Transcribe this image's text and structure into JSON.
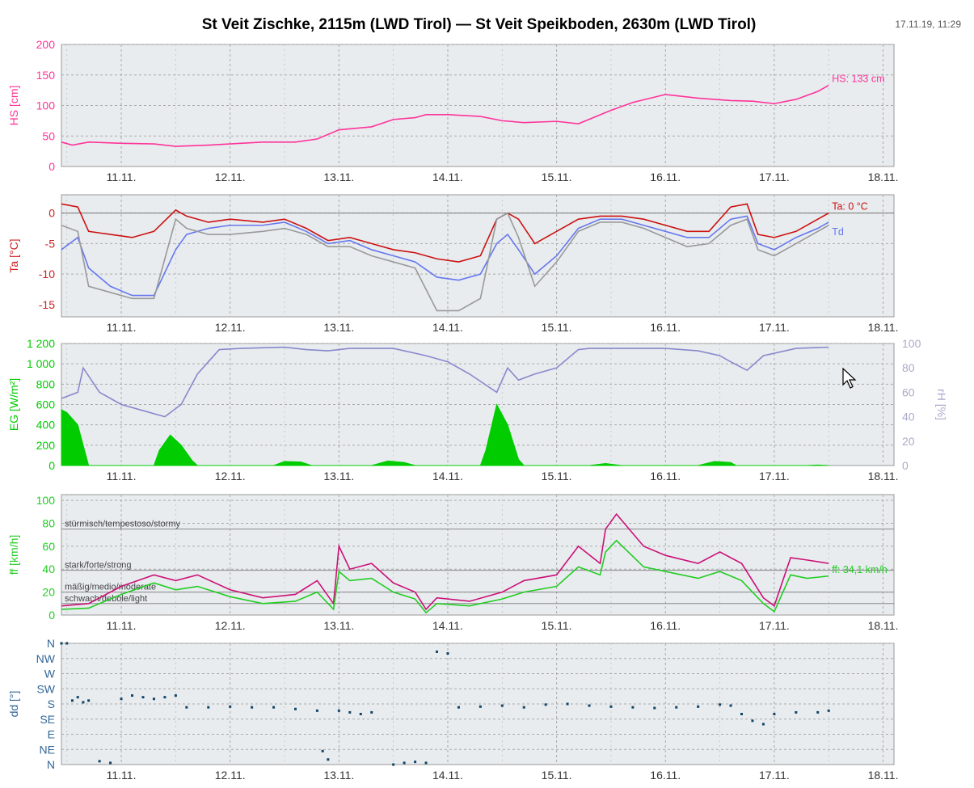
{
  "header": {
    "title": "St Veit Zischke, 2115m (LWD Tirol) — St Veit Speikboden, 2630m (LWD Tirol)",
    "timestamp": "17.11.19, 11:29"
  },
  "chart_data": [
    {
      "type": "line",
      "id": "hs",
      "ylabel": "HS [cm]",
      "ylim": [
        0,
        200
      ],
      "yticks": [
        "0",
        "50",
        "100",
        "150",
        "200"
      ],
      "x_ticks": [
        "11.11.",
        "12.11.",
        "13.11.",
        "14.11.",
        "15.11.",
        "16.11.",
        "17.11.",
        "18.11."
      ],
      "x_range_days": [
        10.45,
        18.1
      ],
      "series": [
        {
          "name": "HS",
          "color": "#ff3399",
          "label": "HS: 133 cm",
          "x": [
            10.45,
            10.55,
            10.7,
            11.0,
            11.3,
            11.5,
            11.8,
            12.0,
            12.3,
            12.6,
            12.8,
            13.0,
            13.3,
            13.5,
            13.7,
            13.8,
            14.0,
            14.3,
            14.5,
            14.7,
            15.0,
            15.2,
            15.5,
            15.7,
            16.0,
            16.3,
            16.6,
            16.8,
            17.0,
            17.2,
            17.4,
            17.5
          ],
          "values": [
            40,
            35,
            40,
            38,
            37,
            33,
            35,
            37,
            40,
            40,
            45,
            60,
            65,
            77,
            80,
            85,
            85,
            82,
            75,
            72,
            74,
            70,
            92,
            105,
            118,
            112,
            108,
            107,
            103,
            110,
            123,
            133
          ]
        }
      ],
      "grid": true
    },
    {
      "type": "line",
      "id": "ta",
      "ylabel": "Ta [°C]",
      "ylim": [
        -17,
        3
      ],
      "yticks": [
        "-15",
        "-10",
        "-5",
        "0"
      ],
      "x_ticks": [
        "11.11.",
        "12.11.",
        "13.11.",
        "14.11.",
        "15.11.",
        "16.11.",
        "17.11.",
        "18.11."
      ],
      "x_range_days": [
        10.45,
        18.1
      ],
      "series": [
        {
          "name": "Ta",
          "color": "#cc1111",
          "label": "Ta: 0 °C",
          "x": [
            10.45,
            10.6,
            10.7,
            10.9,
            11.1,
            11.3,
            11.5,
            11.6,
            11.8,
            12.0,
            12.3,
            12.5,
            12.7,
            12.9,
            13.1,
            13.3,
            13.5,
            13.7,
            13.9,
            14.1,
            14.3,
            14.45,
            14.55,
            14.65,
            14.8,
            15.0,
            15.2,
            15.4,
            15.6,
            15.8,
            16.0,
            16.2,
            16.4,
            16.6,
            16.75,
            16.85,
            17.0,
            17.2,
            17.4,
            17.5
          ],
          "values": [
            1.5,
            1.0,
            -3.0,
            -3.5,
            -4.0,
            -3.0,
            0.5,
            -0.5,
            -1.5,
            -1.0,
            -1.5,
            -1.0,
            -2.5,
            -4.5,
            -4.0,
            -5.0,
            -6.0,
            -6.5,
            -7.5,
            -8.0,
            -7.0,
            -1.0,
            0.0,
            -1.0,
            -5.0,
            -3.0,
            -1.0,
            -0.5,
            -0.5,
            -1.0,
            -2.0,
            -3.0,
            -3.0,
            1.0,
            1.5,
            -3.5,
            -4.0,
            -3.0,
            -1.0,
            0.0
          ]
        },
        {
          "name": "Td",
          "color": "#6677ee",
          "label": "Td",
          "x": [
            10.45,
            10.6,
            10.7,
            10.9,
            11.1,
            11.3,
            11.5,
            11.6,
            11.8,
            12.0,
            12.3,
            12.5,
            12.7,
            12.9,
            13.1,
            13.3,
            13.5,
            13.7,
            13.9,
            14.1,
            14.3,
            14.45,
            14.55,
            14.65,
            14.8,
            15.0,
            15.2,
            15.4,
            15.6,
            15.8,
            16.0,
            16.2,
            16.4,
            16.6,
            16.75,
            16.85,
            17.0,
            17.2,
            17.4,
            17.5
          ],
          "values": [
            -6.0,
            -4.0,
            -9.0,
            -12.0,
            -13.5,
            -13.5,
            -6.0,
            -3.5,
            -2.5,
            -2.0,
            -2.0,
            -1.5,
            -3.0,
            -5.0,
            -4.5,
            -6.0,
            -7.0,
            -8.0,
            -10.5,
            -11.0,
            -10.0,
            -5.0,
            -3.5,
            -6.0,
            -10.0,
            -7.0,
            -2.5,
            -1.0,
            -1.0,
            -2.0,
            -3.0,
            -4.0,
            -4.0,
            -1.0,
            -0.5,
            -5.0,
            -6.0,
            -4.0,
            -2.5,
            -1.5
          ]
        },
        {
          "name": "",
          "color": "#999999",
          "label": "",
          "x": [
            10.45,
            10.6,
            10.7,
            10.9,
            11.1,
            11.3,
            11.5,
            11.6,
            11.8,
            12.0,
            12.3,
            12.5,
            12.7,
            12.9,
            13.1,
            13.3,
            13.5,
            13.7,
            13.9,
            14.1,
            14.3,
            14.45,
            14.55,
            14.65,
            14.8,
            15.0,
            15.2,
            15.4,
            15.6,
            15.8,
            16.0,
            16.2,
            16.4,
            16.6,
            16.75,
            16.85,
            17.0,
            17.2,
            17.4,
            17.5
          ],
          "values": [
            -2.0,
            -3.0,
            -12.0,
            -13.0,
            -14.0,
            -14.0,
            -1.0,
            -2.5,
            -3.5,
            -3.5,
            -3.0,
            -2.5,
            -3.5,
            -5.5,
            -5.5,
            -7.0,
            -8.0,
            -9.0,
            -16.0,
            -16.0,
            -14.0,
            -1.0,
            0.0,
            -4.0,
            -12.0,
            -8.0,
            -3.0,
            -1.5,
            -1.5,
            -2.5,
            -4.0,
            -5.5,
            -5.0,
            -2.0,
            -1.0,
            -6.0,
            -7.0,
            -5.0,
            -3.0,
            -2.0
          ]
        }
      ],
      "grid": true
    },
    {
      "type": "area",
      "id": "eg",
      "ylabel": "EG [W/m²]",
      "ylim": [
        0,
        1200
      ],
      "yticks": [
        "0",
        "200",
        "400",
        "600",
        "800",
        "1 000",
        "1 200"
      ],
      "y2label": "rH [%]",
      "y2lim": [
        0,
        100
      ],
      "y2ticks": [
        "0",
        "20",
        "40",
        "60",
        "80",
        "100"
      ],
      "x_ticks": [
        "11.11.",
        "12.11.",
        "13.11.",
        "14.11.",
        "15.11.",
        "16.11.",
        "17.11.",
        "18.11."
      ],
      "x_range_days": [
        10.45,
        18.1
      ],
      "series": [
        {
          "name": "EG",
          "color": "#00cc00",
          "axis": "left",
          "x": [
            10.45,
            10.5,
            10.6,
            10.65,
            10.7,
            11.3,
            11.35,
            11.45,
            11.55,
            11.65,
            11.7,
            12.4,
            12.5,
            12.65,
            12.75,
            13.3,
            13.45,
            13.6,
            13.7,
            14.3,
            14.35,
            14.45,
            14.55,
            14.65,
            14.7,
            15.3,
            15.45,
            15.6,
            16.3,
            16.45,
            16.6,
            16.65,
            17.3,
            17.4,
            17.5
          ],
          "values": [
            550,
            520,
            400,
            200,
            0,
            0,
            150,
            300,
            200,
            50,
            0,
            0,
            40,
            35,
            0,
            0,
            45,
            30,
            0,
            0,
            150,
            600,
            400,
            60,
            0,
            0,
            20,
            0,
            0,
            40,
            30,
            0,
            0,
            5,
            0
          ]
        },
        {
          "name": "rH",
          "color": "#8888cc",
          "axis": "right",
          "x": [
            10.45,
            10.6,
            10.65,
            10.8,
            11.0,
            11.2,
            11.4,
            11.55,
            11.7,
            11.9,
            12.1,
            12.5,
            12.7,
            12.9,
            13.1,
            13.5,
            13.8,
            14.0,
            14.2,
            14.45,
            14.55,
            14.65,
            14.8,
            15.0,
            15.2,
            15.3,
            15.5,
            15.8,
            16.0,
            16.3,
            16.5,
            16.6,
            16.75,
            16.9,
            17.2,
            17.5
          ],
          "values": [
            55,
            60,
            80,
            60,
            50,
            45,
            40,
            50,
            75,
            95,
            96,
            97,
            95,
            94,
            96,
            96,
            90,
            85,
            75,
            60,
            80,
            70,
            75,
            80,
            95,
            96,
            96,
            96,
            96,
            94,
            90,
            85,
            78,
            90,
            96,
            97
          ]
        }
      ],
      "grid": true
    },
    {
      "type": "line",
      "id": "ff",
      "ylabel": "ff [km/h]",
      "ylim": [
        0,
        105
      ],
      "yticks": [
        "0",
        "20",
        "40",
        "60",
        "80",
        "100"
      ],
      "x_ticks": [
        "11.11.",
        "12.11.",
        "13.11.",
        "14.11.",
        "15.11.",
        "16.11.",
        "17.11.",
        "18.11."
      ],
      "x_range_days": [
        10.45,
        18.1
      ],
      "thresholds": [
        {
          "label": "stürmisch/tempestoso/stormy",
          "value": 75
        },
        {
          "label": "stark/forte/strong",
          "value": 39
        },
        {
          "label": "mäßig/medio/moderate",
          "value": 20
        },
        {
          "label": "schwach/debole/light",
          "value": 10
        }
      ],
      "series": [
        {
          "name": "gust",
          "color": "#cc1177",
          "label": "",
          "x": [
            10.45,
            10.7,
            11.0,
            11.3,
            11.5,
            11.7,
            12.0,
            12.3,
            12.6,
            12.8,
            12.95,
            13.0,
            13.1,
            13.3,
            13.5,
            13.7,
            13.8,
            13.9,
            14.2,
            14.5,
            14.7,
            15.0,
            15.2,
            15.4,
            15.45,
            15.55,
            15.8,
            16.0,
            16.3,
            16.5,
            16.7,
            16.9,
            17.0,
            17.15,
            17.3,
            17.5
          ],
          "values": [
            8,
            10,
            25,
            35,
            30,
            35,
            22,
            15,
            18,
            30,
            10,
            60,
            40,
            45,
            28,
            20,
            5,
            15,
            12,
            20,
            30,
            35,
            60,
            45,
            75,
            88,
            60,
            52,
            45,
            55,
            45,
            15,
            8,
            50,
            48,
            45
          ]
        },
        {
          "name": "ff",
          "color": "#22cc22",
          "label": "ff: 34,1 km/h",
          "x": [
            10.45,
            10.7,
            11.0,
            11.3,
            11.5,
            11.7,
            12.0,
            12.3,
            12.6,
            12.8,
            12.95,
            13.0,
            13.1,
            13.3,
            13.5,
            13.7,
            13.8,
            13.9,
            14.2,
            14.5,
            14.7,
            15.0,
            15.2,
            15.4,
            15.45,
            15.55,
            15.8,
            16.0,
            16.3,
            16.5,
            16.7,
            16.9,
            17.0,
            17.15,
            17.3,
            17.5
          ],
          "values": [
            5,
            6,
            18,
            28,
            22,
            25,
            16,
            10,
            12,
            20,
            5,
            38,
            30,
            32,
            20,
            14,
            2,
            10,
            8,
            14,
            20,
            25,
            42,
            35,
            55,
            65,
            42,
            38,
            32,
            38,
            30,
            10,
            3,
            35,
            32,
            34
          ]
        }
      ],
      "grid": true
    },
    {
      "type": "scatter",
      "id": "dd",
      "ylabel": "dd [°]",
      "ylim": [
        0,
        360
      ],
      "yticks": [
        "N",
        "NE",
        "E",
        "SE",
        "S",
        "SW",
        "W",
        "NW",
        "N"
      ],
      "x_ticks": [
        "11.11.",
        "12.11.",
        "13.11.",
        "14.11.",
        "15.11.",
        "16.11.",
        "17.11.",
        "18.11."
      ],
      "x_range_days": [
        10.45,
        18.1
      ],
      "series": [
        {
          "name": "dd",
          "color": "#114466",
          "x": [
            10.45,
            10.5,
            10.55,
            10.6,
            10.65,
            10.7,
            10.8,
            10.9,
            11.0,
            11.1,
            11.2,
            11.3,
            11.4,
            11.5,
            11.6,
            11.8,
            12.0,
            12.2,
            12.4,
            12.6,
            12.8,
            12.85,
            12.9,
            13.0,
            13.1,
            13.2,
            13.3,
            13.5,
            13.6,
            13.7,
            13.8,
            13.9,
            14.0,
            14.1,
            14.3,
            14.5,
            14.7,
            14.9,
            15.1,
            15.3,
            15.5,
            15.7,
            15.9,
            16.1,
            16.3,
            16.5,
            16.6,
            16.7,
            16.8,
            16.9,
            17.0,
            17.2,
            17.4,
            17.5
          ],
          "values": [
            360,
            360,
            190,
            200,
            185,
            190,
            10,
            5,
            195,
            205,
            200,
            195,
            200,
            205,
            170,
            170,
            172,
            170,
            170,
            165,
            160,
            40,
            15,
            160,
            155,
            150,
            155,
            0,
            5,
            8,
            5,
            335,
            330,
            170,
            172,
            175,
            170,
            178,
            180,
            175,
            172,
            170,
            168,
            170,
            172,
            178,
            175,
            150,
            130,
            120,
            150,
            155,
            155,
            160
          ]
        }
      ],
      "grid": true
    }
  ]
}
